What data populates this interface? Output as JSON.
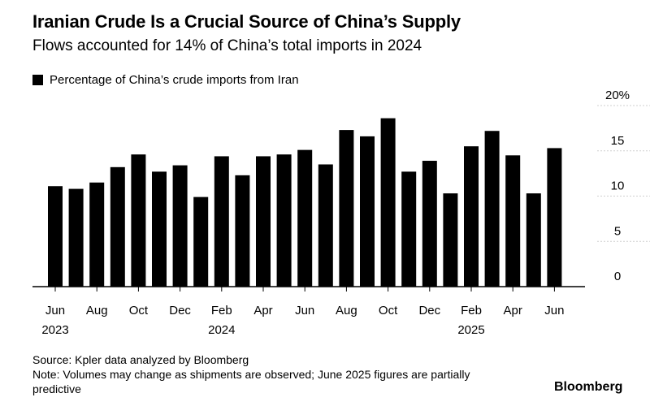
{
  "title": "Iranian Crude Is a Crucial Source of China’s Supply",
  "subtitle": "Flows accounted for 14% of China’s total imports in 2024",
  "legend_label": "Percentage of China’s crude imports from Iran",
  "source": "Source: Kpler data analyzed by Bloomberg",
  "note": "Note: Volumes may change as shipments are observed; June 2025 figures are partially predictive",
  "brand": "Bloomberg",
  "chart_data": {
    "type": "bar",
    "title": "Iranian Crude Is a Crucial Source of China’s Supply",
    "subtitle": "Flows accounted for 14% of China’s total imports in 2024",
    "categories": [
      "Jun 2023",
      "Jul 2023",
      "Aug 2023",
      "Sep 2023",
      "Oct 2023",
      "Nov 2023",
      "Dec 2023",
      "Jan 2024",
      "Feb 2024",
      "Mar 2024",
      "Apr 2024",
      "May 2024",
      "Jun 2024",
      "Jul 2024",
      "Aug 2024",
      "Sep 2024",
      "Oct 2024",
      "Nov 2024",
      "Dec 2024",
      "Jan 2025",
      "Feb 2025",
      "Mar 2025",
      "Apr 2025",
      "May 2025",
      "Jun 2025"
    ],
    "series": [
      {
        "name": "Percentage of China’s crude imports from Iran",
        "values": [
          11.1,
          10.8,
          11.5,
          13.2,
          14.6,
          12.7,
          13.4,
          9.9,
          14.4,
          12.3,
          14.4,
          14.6,
          15.1,
          13.5,
          17.3,
          16.6,
          18.6,
          12.7,
          13.9,
          10.3,
          15.5,
          17.2,
          14.5,
          10.3,
          15.3
        ],
        "color": "#000000"
      }
    ],
    "ylim": [
      0,
      20
    ],
    "yticks": [
      0,
      5,
      10,
      15,
      20
    ],
    "ytick_labels": [
      "0",
      "5",
      "10",
      "15",
      "20%"
    ],
    "xtick_labels": [
      {
        "index": 0,
        "month": "Jun",
        "year": "2023"
      },
      {
        "index": 2,
        "month": "Aug",
        "year": ""
      },
      {
        "index": 4,
        "month": "Oct",
        "year": ""
      },
      {
        "index": 6,
        "month": "Dec",
        "year": ""
      },
      {
        "index": 8,
        "month": "Feb",
        "year": "2024"
      },
      {
        "index": 10,
        "month": "Apr",
        "year": ""
      },
      {
        "index": 12,
        "month": "Jun",
        "year": ""
      },
      {
        "index": 14,
        "month": "Aug",
        "year": ""
      },
      {
        "index": 16,
        "month": "Oct",
        "year": ""
      },
      {
        "index": 18,
        "month": "Dec",
        "year": ""
      },
      {
        "index": 20,
        "month": "Feb",
        "year": "2025"
      },
      {
        "index": 22,
        "month": "Apr",
        "year": ""
      },
      {
        "index": 24,
        "month": "Jun",
        "year": ""
      }
    ],
    "xlabel": "",
    "ylabel": "",
    "grid": true,
    "legend": "top-left"
  }
}
